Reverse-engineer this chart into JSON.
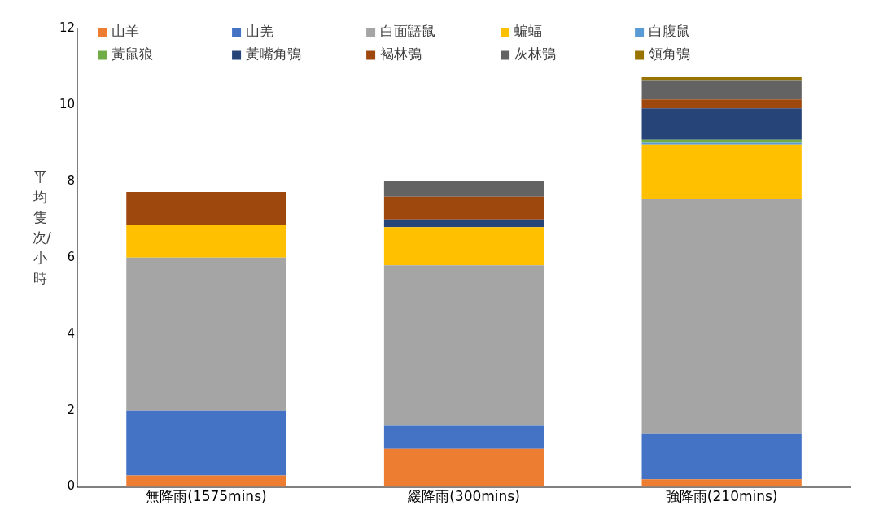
{
  "chart_data": {
    "type": "bar",
    "stacked": true,
    "ylabel": "平均隻次/小時",
    "categories": [
      "無降雨(1575mins)",
      "緩降雨(300mins)",
      "強降雨(210mins)"
    ],
    "ylim": [
      0,
      12
    ],
    "yticks": [
      0,
      2,
      4,
      6,
      8,
      10,
      12
    ],
    "grid": false,
    "legend": "top",
    "series": [
      {
        "name": "山羊",
        "color": "#ed7d31",
        "values": [
          0.3,
          1.0,
          0.2
        ]
      },
      {
        "name": "山羌",
        "color": "#4472c4",
        "values": [
          1.7,
          0.6,
          1.2
        ]
      },
      {
        "name": "白面鼯鼠",
        "color": "#a5a5a5",
        "values": [
          4.0,
          4.2,
          6.13
        ]
      },
      {
        "name": "蝙蝠",
        "color": "#ffc000",
        "values": [
          0.85,
          1.0,
          1.43
        ]
      },
      {
        "name": "白腹鼠",
        "color": "#5b9bd5",
        "values": [
          null,
          null,
          0.05
        ]
      },
      {
        "name": "黃鼠狼",
        "color": "#70ad47",
        "values": [
          null,
          null,
          0.08
        ]
      },
      {
        "name": "黃嘴角鴞",
        "color": "#264478",
        "values": [
          null,
          0.2,
          0.82
        ]
      },
      {
        "name": "褐林鴞",
        "color": "#9e480e",
        "values": [
          0.87,
          0.6,
          0.23
        ]
      },
      {
        "name": "灰林鴞",
        "color": "#636363",
        "values": [
          null,
          0.4,
          0.51
        ]
      },
      {
        "name": "領角鴞",
        "color": "#997300",
        "values": [
          null,
          null,
          0.07
        ]
      }
    ]
  }
}
